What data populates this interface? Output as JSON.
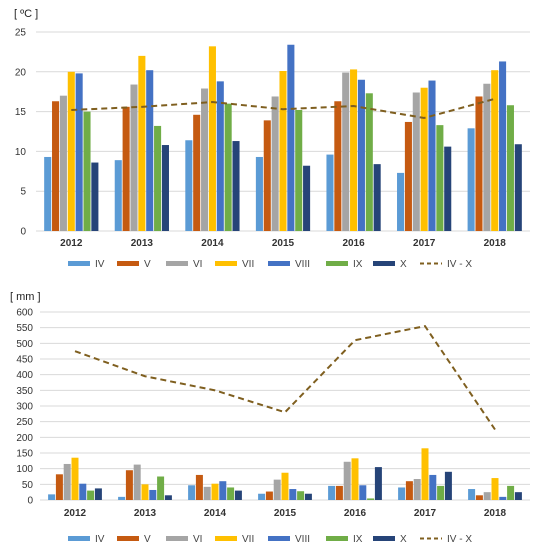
{
  "chart_data": [
    {
      "type": "bar",
      "unit_label": "[ ºC ]",
      "categories": [
        "2012",
        "2013",
        "2014",
        "2015",
        "2016",
        "2017",
        "2018"
      ],
      "ylim": [
        0,
        25
      ],
      "yticks": [
        0,
        5,
        10,
        15,
        20,
        25
      ],
      "grid": true,
      "legend_position": "bottom",
      "series": [
        {
          "name": "IV",
          "type": "bar",
          "color": "#5b9bd5",
          "values": [
            9.3,
            8.9,
            11.4,
            9.3,
            9.6,
            7.3,
            12.9
          ]
        },
        {
          "name": "V",
          "type": "bar",
          "color": "#c55a11",
          "values": [
            16.3,
            15.6,
            14.6,
            13.9,
            16.3,
            13.7,
            16.9
          ]
        },
        {
          "name": "VI",
          "type": "bar",
          "color": "#a5a5a5",
          "values": [
            17.0,
            18.4,
            17.9,
            16.9,
            19.9,
            17.4,
            18.5
          ]
        },
        {
          "name": "VII",
          "type": "bar",
          "color": "#ffc000",
          "values": [
            20.0,
            22.0,
            23.2,
            20.1,
            20.3,
            18.0,
            20.2
          ]
        },
        {
          "name": "VIII",
          "type": "bar",
          "color": "#4472c4",
          "values": [
            19.8,
            20.2,
            18.8,
            23.4,
            19.0,
            18.9,
            21.3
          ]
        },
        {
          "name": "IX",
          "type": "bar",
          "color": "#70ad47",
          "values": [
            15.0,
            13.2,
            16.0,
            15.2,
            17.3,
            13.3,
            15.8
          ]
        },
        {
          "name": "X",
          "type": "bar",
          "color": "#264478",
          "values": [
            8.6,
            10.8,
            11.3,
            8.2,
            8.4,
            10.6,
            10.9
          ]
        },
        {
          "name": "IV - X",
          "type": "line",
          "dash": true,
          "color": "#7f5f1f",
          "values": [
            15.2,
            15.6,
            16.2,
            15.3,
            15.7,
            14.2,
            16.6
          ]
        }
      ]
    },
    {
      "type": "bar",
      "unit_label": "[ mm ]",
      "categories": [
        "2012",
        "2013",
        "2014",
        "2015",
        "2016",
        "2017",
        "2018"
      ],
      "ylim": [
        0,
        600
      ],
      "yticks": [
        0,
        50,
        100,
        150,
        200,
        250,
        300,
        350,
        400,
        450,
        500,
        550,
        600
      ],
      "grid": true,
      "legend_position": "bottom",
      "series": [
        {
          "name": "IV",
          "type": "bar",
          "color": "#5b9bd5",
          "values": [
            18,
            10,
            47,
            20,
            45,
            40,
            35
          ]
        },
        {
          "name": "V",
          "type": "bar",
          "color": "#c55a11",
          "values": [
            82,
            95,
            80,
            27,
            45,
            60,
            15
          ]
        },
        {
          "name": "VI",
          "type": "bar",
          "color": "#a5a5a5",
          "values": [
            115,
            113,
            42,
            65,
            122,
            67,
            25
          ]
        },
        {
          "name": "VII",
          "type": "bar",
          "color": "#ffc000",
          "values": [
            135,
            50,
            52,
            87,
            133,
            165,
            70
          ]
        },
        {
          "name": "VIII",
          "type": "bar",
          "color": "#4472c4",
          "values": [
            52,
            32,
            60,
            35,
            47,
            80,
            10
          ]
        },
        {
          "name": "IX",
          "type": "bar",
          "color": "#70ad47",
          "values": [
            30,
            75,
            40,
            28,
            5,
            45,
            45
          ]
        },
        {
          "name": "X",
          "type": "bar",
          "color": "#264478",
          "values": [
            37,
            15,
            30,
            20,
            105,
            90,
            25
          ]
        },
        {
          "name": "IV - X",
          "type": "line",
          "dash": true,
          "color": "#7f5f1f",
          "values": [
            475,
            395,
            350,
            280,
            510,
            555,
            225
          ]
        }
      ]
    }
  ]
}
